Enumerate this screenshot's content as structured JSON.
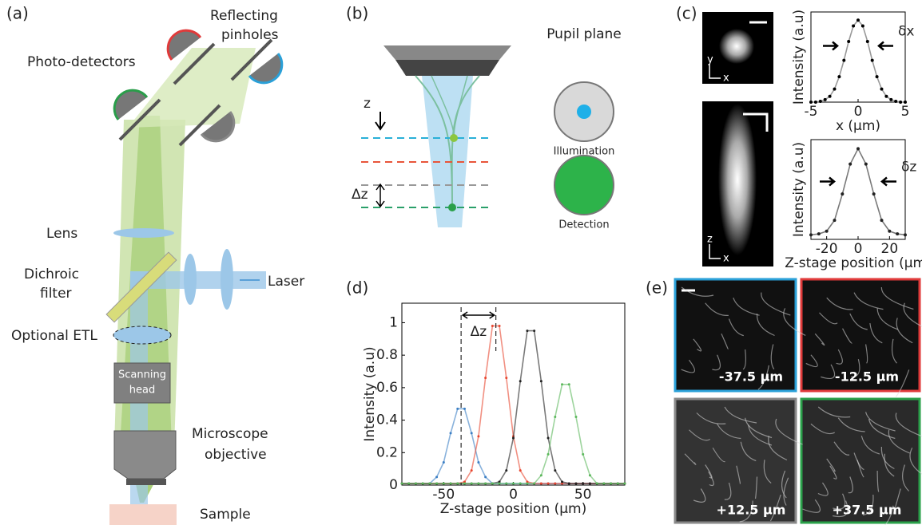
{
  "panel_a": {
    "label": "(a)",
    "reflecting_pinholes": [
      "Reflecting",
      "pinholes"
    ],
    "photo_detectors": "Photo-detectors",
    "lens": "Lens",
    "dichroic_filter": [
      "Dichroic",
      "filter"
    ],
    "laser": "Laser",
    "optional_etl": "Optional ETL",
    "scanning_head": [
      "Scanning",
      "head"
    ],
    "microscope_objective": [
      "Microscope",
      "objective"
    ],
    "sample": "Sample"
  },
  "panel_b": {
    "label": "(b)",
    "z": "z",
    "delta_z": "Δz",
    "pupil_plane": "Pupil plane",
    "illumination": "Illumination",
    "detection": "Detection"
  },
  "panel_c": {
    "label": "(c)",
    "image_axes": [
      "y",
      "x",
      "z",
      "x"
    ]
  },
  "panel_d": {
    "label": "(d)"
  },
  "panel_e": {
    "label": "(e)",
    "images": [
      "-37.5 μm",
      "-12.5 μm",
      "+12.5 μm",
      "+37.5 μm"
    ]
  },
  "chart_data": [
    {
      "type": "line",
      "xlabel": "x (μm)",
      "ylabel": "Intensity (a.u)",
      "annotation": "δx",
      "x": [
        -5,
        -4.5,
        -4,
        -3.5,
        -3,
        -2.5,
        -2,
        -1.5,
        -1,
        -0.5,
        0,
        0.5,
        1,
        1.5,
        2,
        2.5,
        3,
        3.5,
        4,
        4.5,
        5
      ],
      "series": [
        {
          "color": "#999999",
          "values": [
            0,
            0,
            0.01,
            0.03,
            0.07,
            0.16,
            0.31,
            0.51,
            0.74,
            0.93,
            1.0,
            0.93,
            0.74,
            0.51,
            0.31,
            0.16,
            0.07,
            0.03,
            0.01,
            0,
            0
          ]
        }
      ],
      "xlim": [
        -5,
        5
      ],
      "ylim": [
        0,
        1.1
      ],
      "xticks": [
        -5,
        0,
        5
      ]
    },
    {
      "type": "line",
      "xlabel": "Z-stage position (μm)",
      "ylabel": "Intensity (a.u)",
      "annotation": "δz",
      "x": [
        -30,
        -25,
        -20,
        -15,
        -10,
        -5,
        0,
        5,
        10,
        15,
        20,
        25,
        30
      ],
      "series": [
        {
          "color": "#222222",
          "values": [
            0.05,
            0.06,
            0.09,
            0.21,
            0.5,
            0.83,
            1.0,
            0.83,
            0.5,
            0.21,
            0.09,
            0.06,
            0.05
          ]
        }
      ],
      "xlim": [
        -30,
        30
      ],
      "ylim": [
        0,
        1.1
      ],
      "xticks": [
        -20,
        0,
        20
      ]
    },
    {
      "type": "line",
      "xlabel": "Z-stage position (μm)",
      "ylabel": "Intensity (a.u)",
      "annotation": "Δz",
      "x": [
        -80,
        -75,
        -70,
        -65,
        -60,
        -55,
        -50,
        -45,
        -40,
        -35,
        -30,
        -25,
        -20,
        -15,
        -10,
        -5,
        0,
        5,
        10,
        15,
        20,
        25,
        30,
        35,
        40,
        45,
        50,
        55,
        60,
        65,
        70,
        75,
        80
      ],
      "series": [
        {
          "color": "#3a7ec4",
          "values": [
            0.01,
            0.01,
            0.01,
            0.01,
            0.01,
            0.05,
            0.14,
            0.32,
            0.47,
            0.47,
            0.32,
            0.14,
            0.05,
            0.01,
            0.01,
            0.01,
            0.01,
            0.01,
            0.01,
            0.01,
            0.01,
            0.01,
            0.01,
            0.01,
            0.01,
            0.01,
            0.01,
            0.01,
            0.01,
            0.01,
            0.01,
            0.01,
            0.01
          ]
        },
        {
          "color": "#e8462f",
          "values": [
            0.01,
            0.01,
            0.01,
            0.01,
            0.01,
            0.01,
            0.01,
            0.01,
            0.01,
            0.02,
            0.09,
            0.3,
            0.66,
            0.98,
            0.98,
            0.66,
            0.3,
            0.09,
            0.02,
            0.01,
            0.01,
            0.01,
            0.01,
            0.01,
            0.01,
            0.01,
            0.01,
            0.01,
            0.01,
            0.01,
            0.01,
            0.01,
            0.01
          ]
        },
        {
          "color": "#222222",
          "values": [
            0.01,
            0.01,
            0.01,
            0.01,
            0.01,
            0.01,
            0.01,
            0.01,
            0.01,
            0.01,
            0.01,
            0.01,
            0.01,
            0.01,
            0.02,
            0.09,
            0.29,
            0.64,
            0.95,
            0.95,
            0.64,
            0.29,
            0.09,
            0.02,
            0.01,
            0.01,
            0.01,
            0.01,
            0.01,
            0.01,
            0.01,
            0.01,
            0.01
          ]
        },
        {
          "color": "#5cb85c",
          "values": [
            0.01,
            0.01,
            0.01,
            0.01,
            0.01,
            0.01,
            0.01,
            0.01,
            0.01,
            0.01,
            0.01,
            0.01,
            0.01,
            0.01,
            0.01,
            0.01,
            0.01,
            0.01,
            0.01,
            0.01,
            0.06,
            0.19,
            0.42,
            0.62,
            0.62,
            0.42,
            0.19,
            0.06,
            0.01,
            0.01,
            0.01,
            0.01,
            0.01
          ]
        }
      ],
      "xlim": [
        -80,
        80
      ],
      "ylim": [
        0,
        1.12
      ],
      "xticks": [
        -50,
        0,
        50
      ],
      "yticks": [
        0,
        0.2,
        0.4,
        0.6,
        0.8,
        1
      ]
    }
  ]
}
